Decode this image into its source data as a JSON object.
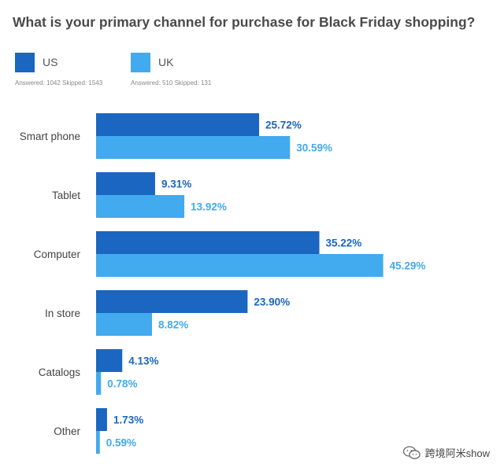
{
  "title": "What is your primary channel for purchase for Black Friday shopping?",
  "legend": [
    {
      "name": "US",
      "color": "#1a66c0",
      "meta": "Answered: 1042  Skipped: 1543"
    },
    {
      "name": "UK",
      "color": "#42aaee",
      "meta": "Answered: 510  Skipped: 131"
    }
  ],
  "watermark": "跨境阿米show",
  "chart_data": {
    "type": "bar",
    "orientation": "horizontal",
    "categories": [
      "Smart phone",
      "Tablet",
      "Computer",
      "In store",
      "Catalogs",
      "Other"
    ],
    "series": [
      {
        "name": "US",
        "values": [
          25.72,
          9.31,
          35.22,
          23.9,
          4.13,
          1.73
        ],
        "labels": [
          "25.72%",
          "9.31%",
          "35.22%",
          "23.90%",
          "4.13%",
          "1.73%"
        ],
        "color": "#1a66c0"
      },
      {
        "name": "UK",
        "values": [
          30.59,
          13.92,
          45.29,
          8.82,
          0.78,
          0.59
        ],
        "labels": [
          "30.59%",
          "13.92%",
          "45.29%",
          "8.82%",
          "0.78%",
          "0.59%"
        ],
        "color": "#42aaee"
      }
    ],
    "xlim": [
      0,
      100
    ],
    "grid": false,
    "legend_position": "top-left"
  }
}
